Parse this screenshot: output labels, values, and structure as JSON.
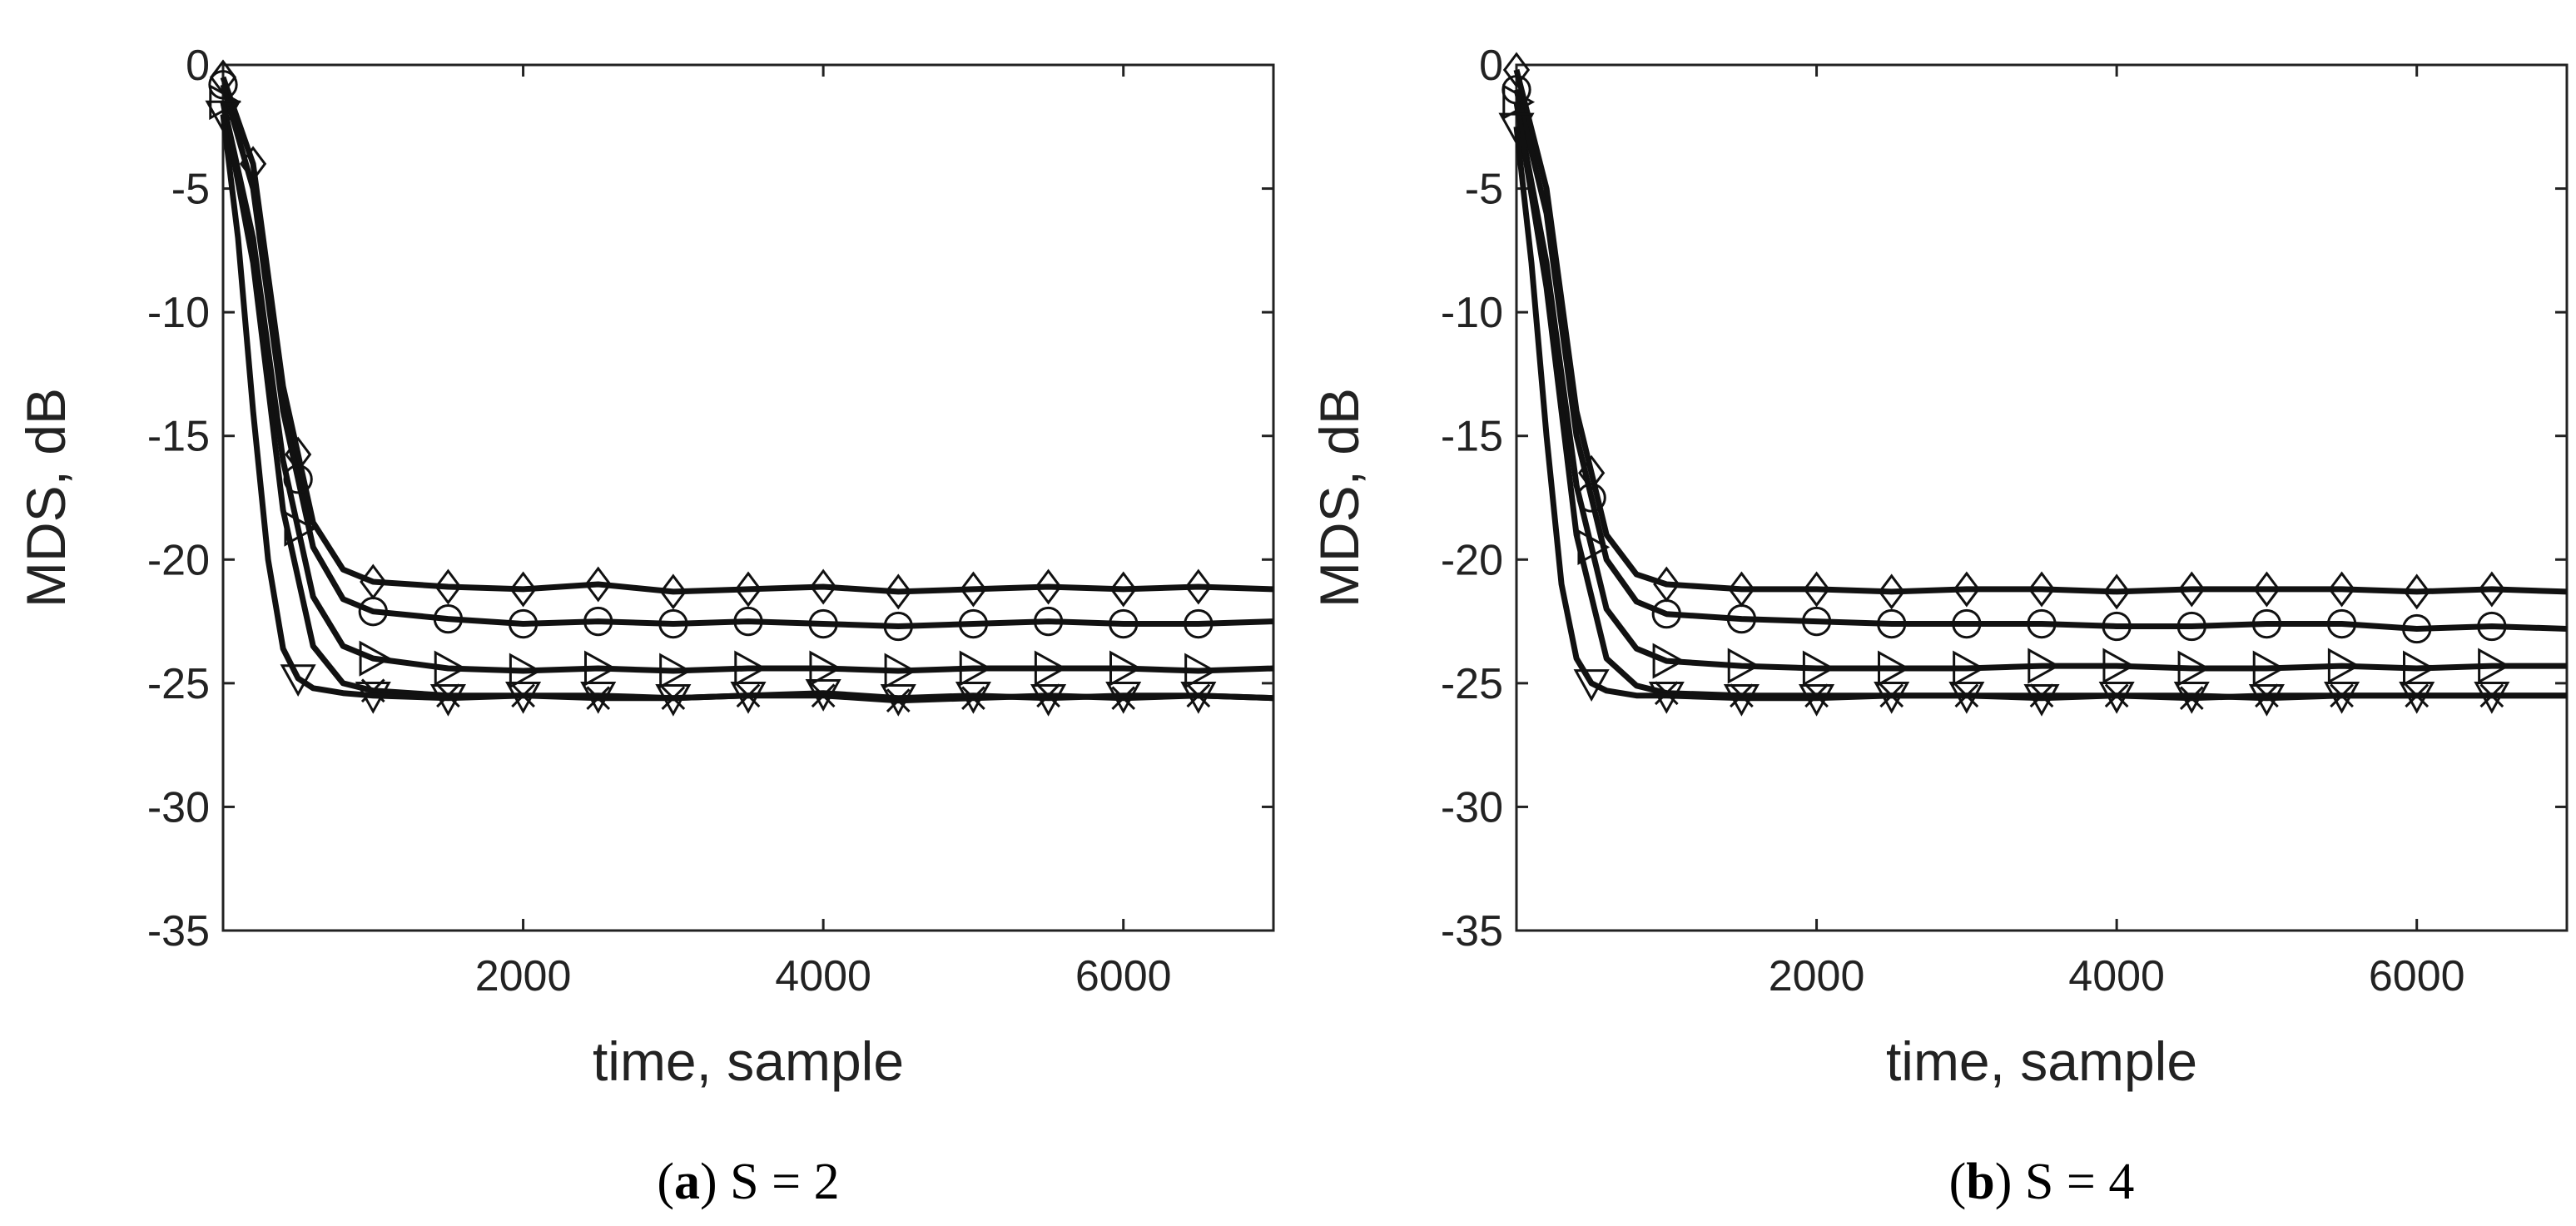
{
  "chart_data": [
    {
      "type": "line",
      "caption": {
        "prefix": "(",
        "letter": "a",
        "suffix": ") S = 2"
      },
      "xlabel": "time, sample",
      "ylabel": "MDS, dB",
      "xlim": [
        0,
        7000
      ],
      "ylim": [
        -35,
        0
      ],
      "xticks": [
        2000,
        4000,
        6000
      ],
      "xtick_labels": [
        "2000",
        "4000",
        "6000"
      ],
      "yticks": [
        0,
        -5,
        -10,
        -15,
        -20,
        -25,
        -30,
        -35
      ],
      "ytick_labels": [
        "0",
        "-5",
        "-10",
        "-15",
        "-20",
        "-25",
        "-30",
        "-35"
      ],
      "grid": false,
      "series": [
        {
          "name": "diamond",
          "marker": "diamond",
          "x": [
            0,
            200,
            400,
            600,
            800,
            1000,
            1500,
            2000,
            2500,
            3000,
            3500,
            4000,
            4500,
            5000,
            5500,
            6000,
            6500,
            7000
          ],
          "y": [
            -0.5,
            -4,
            -13,
            -18.5,
            -20.4,
            -20.9,
            -21.1,
            -21.2,
            -21.0,
            -21.3,
            -21.2,
            -21.1,
            -21.3,
            -21.2,
            -21.1,
            -21.2,
            -21.1,
            -21.2
          ],
          "marker_x": [
            0,
            200,
            500,
            1000,
            1500,
            2000,
            2500,
            3000,
            3500,
            4000,
            4500,
            5000,
            5500,
            6000,
            6500
          ]
        },
        {
          "name": "circle",
          "marker": "circle",
          "x": [
            0,
            200,
            400,
            600,
            800,
            1000,
            1500,
            2000,
            2500,
            3000,
            3500,
            4000,
            4500,
            5000,
            5500,
            6000,
            6500,
            7000
          ],
          "y": [
            -0.8,
            -5,
            -14,
            -19.5,
            -21.6,
            -22.1,
            -22.4,
            -22.6,
            -22.5,
            -22.6,
            -22.5,
            -22.6,
            -22.7,
            -22.6,
            -22.5,
            -22.6,
            -22.6,
            -22.5
          ],
          "marker_x": [
            0,
            500,
            1000,
            1500,
            2000,
            2500,
            3000,
            3500,
            4000,
            4500,
            5000,
            5500,
            6000,
            6500
          ]
        },
        {
          "name": "right-triangle",
          "marker": "triangle-right",
          "x": [
            0,
            200,
            400,
            600,
            800,
            1000,
            1500,
            2000,
            2500,
            3000,
            3500,
            4000,
            4500,
            5000,
            5500,
            6000,
            6500,
            7000
          ],
          "y": [
            -1.5,
            -7,
            -16,
            -21.5,
            -23.5,
            -24.0,
            -24.4,
            -24.5,
            -24.4,
            -24.5,
            -24.4,
            -24.4,
            -24.5,
            -24.4,
            -24.4,
            -24.4,
            -24.5,
            -24.4
          ],
          "marker_x": [
            0,
            500,
            1000,
            1500,
            2000,
            2500,
            3000,
            3500,
            4000,
            4500,
            5000,
            5500,
            6000,
            6500
          ]
        },
        {
          "name": "cross",
          "marker": "x",
          "x": [
            0,
            200,
            400,
            600,
            800,
            1000,
            1500,
            2000,
            2500,
            3000,
            3500,
            4000,
            4500,
            5000,
            5500,
            6000,
            6500,
            7000
          ],
          "y": [
            -1.5,
            -8,
            -18,
            -23.5,
            -25.0,
            -25.3,
            -25.5,
            -25.5,
            -25.6,
            -25.6,
            -25.5,
            -25.5,
            -25.7,
            -25.6,
            -25.5,
            -25.6,
            -25.5,
            -25.6
          ],
          "marker_x": [
            1000,
            1500,
            2000,
            2500,
            3000,
            3500,
            4000,
            4500,
            5000,
            5500,
            6000,
            6500
          ]
        },
        {
          "name": "down-triangle",
          "marker": "triangle-down",
          "x": [
            0,
            100,
            200,
            300,
            400,
            500,
            600,
            800,
            1000,
            1500,
            2000,
            2500,
            3000,
            3500,
            4000,
            4500,
            5000,
            5500,
            6000,
            6500,
            7000
          ],
          "y": [
            -2,
            -7,
            -14,
            -20,
            -23.6,
            -24.8,
            -25.2,
            -25.4,
            -25.5,
            -25.6,
            -25.5,
            -25.5,
            -25.6,
            -25.5,
            -25.4,
            -25.6,
            -25.5,
            -25.6,
            -25.5,
            -25.5,
            -25.6
          ],
          "marker_x": [
            0,
            500,
            1000,
            1500,
            2000,
            2500,
            3000,
            3500,
            4000,
            4500,
            5000,
            5500,
            6000,
            6500
          ]
        }
      ]
    },
    {
      "type": "line",
      "caption": {
        "prefix": "(",
        "letter": "b",
        "suffix": ") S = 4"
      },
      "xlabel": "time, sample",
      "ylabel": "MDS, dB",
      "xlim": [
        0,
        7000
      ],
      "ylim": [
        -35,
        0
      ],
      "xticks": [
        2000,
        4000,
        6000
      ],
      "xtick_labels": [
        "2000",
        "4000",
        "6000"
      ],
      "yticks": [
        0,
        -5,
        -10,
        -15,
        -20,
        -25,
        -30,
        -35
      ],
      "ytick_labels": [
        "0",
        "-5",
        "-10",
        "-15",
        "-20",
        "-25",
        "-30",
        "-35"
      ],
      "grid": false,
      "series": [
        {
          "name": "diamond",
          "marker": "diamond",
          "x": [
            0,
            200,
            400,
            600,
            800,
            1000,
            1500,
            2000,
            2500,
            3000,
            3500,
            4000,
            4500,
            5000,
            5500,
            6000,
            6500,
            7000
          ],
          "y": [
            -0.2,
            -5,
            -14,
            -19,
            -20.6,
            -21.0,
            -21.2,
            -21.2,
            -21.3,
            -21.2,
            -21.2,
            -21.3,
            -21.2,
            -21.2,
            -21.2,
            -21.3,
            -21.2,
            -21.3
          ],
          "marker_x": [
            0,
            500,
            1000,
            1500,
            2000,
            2500,
            3000,
            3500,
            4000,
            4500,
            5000,
            5500,
            6000,
            6500
          ]
        },
        {
          "name": "circle",
          "marker": "circle",
          "x": [
            0,
            200,
            400,
            600,
            800,
            1000,
            1500,
            2000,
            2500,
            3000,
            3500,
            4000,
            4500,
            5000,
            5500,
            6000,
            6500,
            7000
          ],
          "y": [
            -1,
            -6,
            -15,
            -20,
            -21.7,
            -22.2,
            -22.4,
            -22.5,
            -22.6,
            -22.6,
            -22.6,
            -22.7,
            -22.7,
            -22.6,
            -22.6,
            -22.8,
            -22.7,
            -22.8
          ],
          "marker_x": [
            0,
            500,
            1000,
            1500,
            2000,
            2500,
            3000,
            3500,
            4000,
            4500,
            5000,
            5500,
            6000,
            6500
          ]
        },
        {
          "name": "right-triangle",
          "marker": "triangle-right",
          "x": [
            0,
            200,
            400,
            600,
            800,
            1000,
            1500,
            2000,
            2500,
            3000,
            3500,
            4000,
            4500,
            5000,
            5500,
            6000,
            6500,
            7000
          ],
          "y": [
            -1.5,
            -8,
            -17,
            -22,
            -23.6,
            -24.1,
            -24.3,
            -24.4,
            -24.4,
            -24.4,
            -24.3,
            -24.3,
            -24.4,
            -24.4,
            -24.3,
            -24.4,
            -24.3,
            -24.3
          ],
          "marker_x": [
            0,
            500,
            1000,
            1500,
            2000,
            2500,
            3000,
            3500,
            4000,
            4500,
            5000,
            5500,
            6000,
            6500
          ]
        },
        {
          "name": "cross",
          "marker": "x",
          "x": [
            0,
            200,
            400,
            600,
            800,
            1000,
            1500,
            2000,
            2500,
            3000,
            3500,
            4000,
            4500,
            5000,
            5500,
            6000,
            6500,
            7000
          ],
          "y": [
            -1.5,
            -9,
            -19,
            -24,
            -25.1,
            -25.4,
            -25.5,
            -25.5,
            -25.5,
            -25.5,
            -25.5,
            -25.5,
            -25.6,
            -25.5,
            -25.5,
            -25.5,
            -25.5,
            -25.5
          ],
          "marker_x": [
            1000,
            1500,
            2000,
            2500,
            3000,
            3500,
            4000,
            4500,
            5000,
            5500,
            6000,
            6500
          ]
        },
        {
          "name": "down-triangle",
          "marker": "triangle-down",
          "x": [
            0,
            100,
            200,
            300,
            400,
            500,
            600,
            800,
            1000,
            1500,
            2000,
            2500,
            3000,
            3500,
            4000,
            4500,
            5000,
            5500,
            6000,
            6500,
            7000
          ],
          "y": [
            -2.5,
            -8,
            -15,
            -21,
            -24.0,
            -25.0,
            -25.3,
            -25.5,
            -25.5,
            -25.6,
            -25.6,
            -25.5,
            -25.5,
            -25.6,
            -25.5,
            -25.5,
            -25.6,
            -25.5,
            -25.5,
            -25.5,
            -25.5
          ],
          "marker_x": [
            0,
            500,
            1000,
            1500,
            2000,
            2500,
            3000,
            3500,
            4000,
            4500,
            5000,
            5500,
            6000,
            6500
          ]
        }
      ]
    }
  ]
}
